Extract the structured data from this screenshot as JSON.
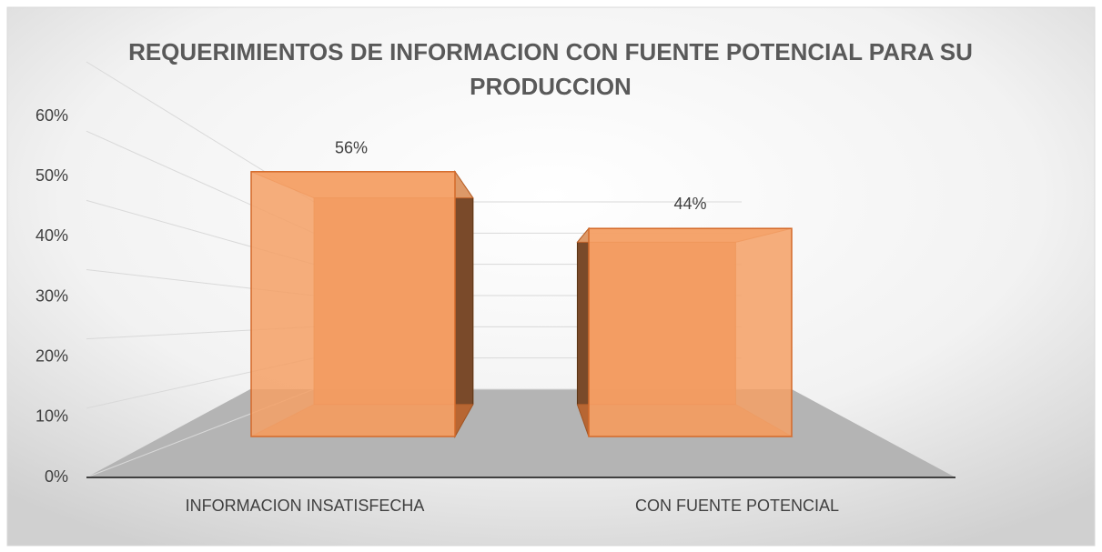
{
  "chart_data": {
    "type": "bar3d",
    "title": "REQUERIMIENTOS DE INFORMACION CON FUENTE POTENCIAL PARA SU PRODUCCION",
    "categories": [
      "INFORMACION INSATISFECHA",
      "CON FUENTE POTENCIAL"
    ],
    "values": [
      56,
      44
    ],
    "value_labels": [
      "56%",
      "44%"
    ],
    "color": "#f4a065",
    "ylim": [
      0,
      60
    ],
    "yticks": [
      {
        "value": 0,
        "label": "0%"
      },
      {
        "value": 10,
        "label": "10%"
      },
      {
        "value": 20,
        "label": "20%"
      },
      {
        "value": 30,
        "label": "30%"
      },
      {
        "value": 40,
        "label": "40%"
      },
      {
        "value": 50,
        "label": "50%"
      },
      {
        "value": 60,
        "label": "60%"
      }
    ],
    "grid": true
  }
}
